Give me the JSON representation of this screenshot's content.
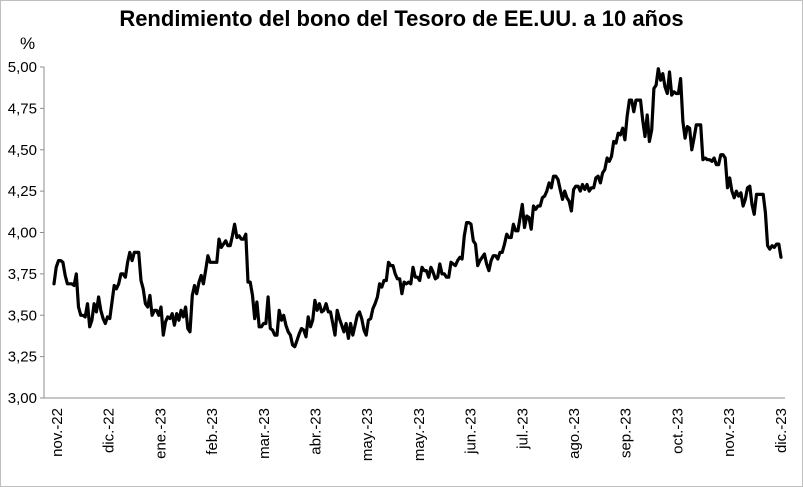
{
  "chart_data": {
    "type": "line",
    "title": "Rendimiento del bono del Tesoro de EE.UU. a 10 años",
    "ylabel": "%",
    "xlabel": "",
    "ylim": [
      3.0,
      5.0
    ],
    "yticks": [
      {
        "value": 3.0,
        "label": "3,00"
      },
      {
        "value": 3.25,
        "label": "3,25"
      },
      {
        "value": 3.5,
        "label": "3,50"
      },
      {
        "value": 3.75,
        "label": "3,75"
      },
      {
        "value": 4.0,
        "label": "4,00"
      },
      {
        "value": 4.25,
        "label": "4,25"
      },
      {
        "value": 4.5,
        "label": "4,50"
      },
      {
        "value": 4.75,
        "label": "4,75"
      },
      {
        "value": 5.0,
        "label": "5,00"
      }
    ],
    "xticks": [
      "nov.-22",
      "dic.-22",
      "ene.-23",
      "feb.-23",
      "mar.-23",
      "abr.-23",
      "may.-23",
      "may.-23",
      "jun.-23",
      "jul.-23",
      "ago.-23",
      "sep.-23",
      "oct.-23",
      "nov.-23",
      "dic.-23"
    ],
    "grid": false,
    "legend": "none",
    "line_color": "#000000",
    "series": [
      {
        "values": [
          3.69,
          3.79,
          3.83,
          3.83,
          3.82,
          3.74,
          3.69,
          3.69,
          3.69,
          3.68,
          3.75,
          3.55,
          3.5,
          3.5,
          3.49,
          3.57,
          3.43,
          3.47,
          3.57,
          3.52,
          3.61,
          3.53,
          3.48,
          3.45,
          3.49,
          3.48,
          3.58,
          3.68,
          3.66,
          3.69,
          3.75,
          3.75,
          3.73,
          3.82,
          3.88,
          3.83,
          3.88,
          3.88,
          3.88,
          3.71,
          3.66,
          3.57,
          3.55,
          3.62,
          3.5,
          3.53,
          3.53,
          3.5,
          3.55,
          3.38,
          3.46,
          3.49,
          3.48,
          3.51,
          3.44,
          3.51,
          3.47,
          3.53,
          3.49,
          3.55,
          3.42,
          3.4,
          3.62,
          3.68,
          3.63,
          3.7,
          3.74,
          3.69,
          3.77,
          3.86,
          3.82,
          3.82,
          3.82,
          3.82,
          3.96,
          3.91,
          3.93,
          3.95,
          3.92,
          3.92,
          3.98,
          4.05,
          3.97,
          3.98,
          3.96,
          3.96,
          3.99,
          3.7,
          3.7,
          3.62,
          3.48,
          3.58,
          3.43,
          3.43,
          3.45,
          3.45,
          3.61,
          3.42,
          3.41,
          3.38,
          3.38,
          3.53,
          3.47,
          3.5,
          3.44,
          3.4,
          3.38,
          3.32,
          3.31,
          3.35,
          3.39,
          3.42,
          3.41,
          3.37,
          3.49,
          3.43,
          3.47,
          3.59,
          3.53,
          3.57,
          3.52,
          3.53,
          3.57,
          3.52,
          3.52,
          3.45,
          3.38,
          3.53,
          3.48,
          3.44,
          3.4,
          3.45,
          3.36,
          3.45,
          3.38,
          3.44,
          3.5,
          3.52,
          3.48,
          3.41,
          3.38,
          3.47,
          3.48,
          3.54,
          3.57,
          3.61,
          3.69,
          3.67,
          3.71,
          3.71,
          3.82,
          3.8,
          3.8,
          3.75,
          3.72,
          3.72,
          3.63,
          3.7,
          3.69,
          3.7,
          3.69,
          3.79,
          3.73,
          3.73,
          3.71,
          3.79,
          3.77,
          3.77,
          3.73,
          3.79,
          3.76,
          3.72,
          3.73,
          3.81,
          3.75,
          3.75,
          3.73,
          3.73,
          3.82,
          3.81,
          3.8,
          3.83,
          3.85,
          3.84,
          3.98,
          4.06,
          4.06,
          4.05,
          3.95,
          3.93,
          3.8,
          3.83,
          3.85,
          3.87,
          3.81,
          3.77,
          3.83,
          3.86,
          3.86,
          3.84,
          3.88,
          3.88,
          3.93,
          3.99,
          3.97,
          3.97,
          4.05,
          4.01,
          4.01,
          4.09,
          4.17,
          4.03,
          4.1,
          4.09,
          4.02,
          4.16,
          4.14,
          4.16,
          4.16,
          4.21,
          4.22,
          4.25,
          4.3,
          4.27,
          4.34,
          4.34,
          4.32,
          4.26,
          4.2,
          4.25,
          4.21,
          4.19,
          4.13,
          4.26,
          4.28,
          4.28,
          4.25,
          4.29,
          4.26,
          4.29,
          4.25,
          4.27,
          4.27,
          4.33,
          4.34,
          4.3,
          4.36,
          4.38,
          4.45,
          4.43,
          4.46,
          4.55,
          4.54,
          4.6,
          4.59,
          4.63,
          4.56,
          4.7,
          4.8,
          4.8,
          4.73,
          4.8,
          4.8,
          4.8,
          4.68,
          4.58,
          4.71,
          4.55,
          4.62,
          4.87,
          4.89,
          4.99,
          4.92,
          4.96,
          4.88,
          4.84,
          4.97,
          4.83,
          4.85,
          4.84,
          4.84,
          4.93,
          4.67,
          4.57,
          4.64,
          4.63,
          4.5,
          4.57,
          4.65,
          4.65,
          4.65,
          4.44,
          4.45,
          4.44,
          4.44,
          4.43,
          4.45,
          4.41,
          4.41,
          4.47,
          4.47,
          4.45,
          4.27,
          4.33,
          4.25,
          4.21,
          4.25,
          4.22,
          4.24,
          4.16,
          4.2,
          4.27,
          4.28,
          4.17,
          4.11,
          4.23,
          4.23,
          4.23,
          4.23,
          4.12,
          3.92,
          3.9,
          3.92,
          3.91,
          3.93,
          3.93,
          3.85
        ]
      }
    ]
  }
}
